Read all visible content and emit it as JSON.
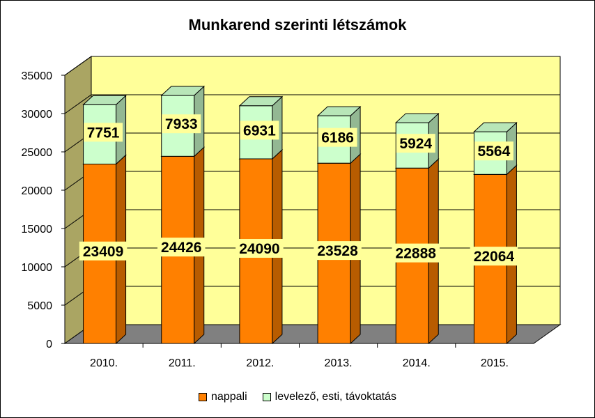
{
  "chart_data": {
    "type": "bar",
    "stacked": true,
    "three_d": true,
    "title": "Munkarend szerinti létszámok",
    "categories": [
      "2010.",
      "2011.",
      "2012.",
      "2013.",
      "2014.",
      "2015."
    ],
    "series": [
      {
        "name": "nappali",
        "values": [
          23409,
          24426,
          24090,
          23528,
          22888,
          22064
        ],
        "color": "#ff8000"
      },
      {
        "name": "levelező, esti, távoktatás",
        "values": [
          7751,
          7933,
          6931,
          6186,
          5924,
          5564
        ],
        "color": "#ccffcc"
      }
    ],
    "ylim": [
      0,
      35000
    ],
    "yticks": [
      "0",
      "5000",
      "10000",
      "15000",
      "20000",
      "25000",
      "30000",
      "35000"
    ],
    "grid": true,
    "legend_position": "bottom",
    "colors": {
      "plot_wall": "#ffff99",
      "side_wall": "#aaa563",
      "floor": "#808080",
      "data_label_bg": "#ffff99"
    }
  }
}
